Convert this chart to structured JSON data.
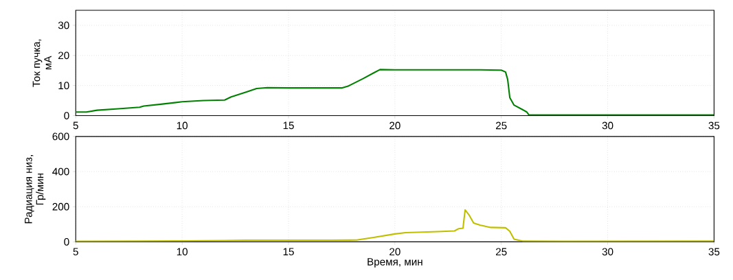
{
  "chart_data": [
    {
      "type": "line",
      "ylabel": "Ток пучка,\nмА",
      "xlim": [
        5,
        35
      ],
      "ylim": [
        0,
        35
      ],
      "xticks": [
        5,
        10,
        15,
        20,
        25,
        30,
        35
      ],
      "yticks": [
        0,
        10,
        20,
        30
      ],
      "grid": true,
      "series": [
        {
          "color": "#008000",
          "x": [
            5,
            5.5,
            6,
            7,
            8,
            8.2,
            9,
            10,
            11,
            12,
            12.3,
            13,
            13.5,
            14,
            15,
            17.5,
            17.8,
            18.5,
            19,
            19.3,
            20,
            22,
            24,
            25,
            25.2,
            25.3,
            25.4,
            25.6,
            26,
            26.2,
            26.3,
            35
          ],
          "values": [
            1.2,
            1.2,
            1.8,
            2.3,
            2.8,
            3.2,
            3.8,
            4.6,
            5.0,
            5.2,
            6.2,
            7.8,
            9.0,
            9.3,
            9.2,
            9.2,
            9.8,
            12.3,
            14.2,
            15.3,
            15.2,
            15.2,
            15.2,
            15.1,
            14.5,
            12,
            6,
            3.5,
            2.0,
            1.2,
            0.2,
            0.2
          ]
        }
      ]
    },
    {
      "type": "line",
      "xlabel": "Время, мин",
      "ylabel": "Радиация низ,\nГр/мин",
      "xlim": [
        5,
        35
      ],
      "ylim": [
        0,
        600
      ],
      "xticks": [
        5,
        10,
        15,
        20,
        25,
        30,
        35
      ],
      "yticks": [
        0,
        200,
        400,
        600
      ],
      "grid": true,
      "series": [
        {
          "color": "#bfbf00",
          "x": [
            5,
            8,
            10,
            12,
            13,
            15,
            17,
            18.2,
            19,
            20,
            20.5,
            22,
            22.8,
            23,
            23.2,
            23.3,
            23.5,
            23.7,
            24,
            24.5,
            25.2,
            25.4,
            25.6,
            26,
            28,
            35
          ],
          "values": [
            3,
            4,
            5,
            7,
            9,
            9,
            9,
            10,
            25,
            45,
            52,
            58,
            62,
            75,
            78,
            182,
            150,
            107,
            95,
            82,
            80,
            60,
            15,
            4,
            3,
            4
          ]
        }
      ]
    }
  ]
}
